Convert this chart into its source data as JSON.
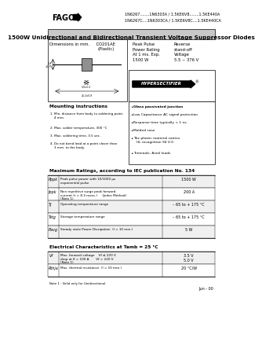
{
  "title_line1": "1500W Unidirectional and Bidirectional Transient Voltage Suppressor Diodes",
  "header_part_numbers_line1": "1N6267........1N6303A / 1.5KE6V8........1.5KE440A",
  "header_part_numbers_line2": "1N6267C....1N6303CA / 1.5KE6V8C....1.5KE440CA",
  "fagor_text": "FAGOR",
  "hypersectifier_text": "HYPERSECTIFIER",
  "dimensions_label": "Dimensions in mm.",
  "package_label": "DO201AE\n(Plastic)",
  "mounting_title": "Mounting instructions",
  "mounting_items": [
    "1. Min. distance from body to soldering point,\n    4 mm.",
    "2. Max. solder temperature, 300 °C",
    "3. Max. soldering time, 3.5 sec.",
    "4. Do not bend lead at a point closer than\n    3 mm. to the body."
  ],
  "features_items": [
    "Glass passivated junction",
    "Low Capacitance AC signal protection",
    "Response time typically < 1 ns.",
    "Molded case",
    "The plastic material carries\n   UL recognition 94 V-0",
    "Terminals: Axial leads"
  ],
  "max_ratings_title": "Maximum Ratings, according to IEC publication No. 134",
  "max_ratings_rows": [
    {
      "sym": "Pppk",
      "desc": "Peak pulse power with 10/1000 μs\nexponential pulse",
      "val": "1500 W"
    },
    {
      "sym": "Ippk",
      "desc": "Non repetitive surge peak forward\ncurrent (t = 8.3 msec.)     (Jedec Method)\n(Note 1)",
      "val": "200 A"
    },
    {
      "sym": "Tj",
      "desc": "Operating temperature range",
      "val": "– 65 to + 175 °C"
    },
    {
      "sym": "Tstg",
      "desc": "Storage temperature range",
      "val": "– 65 to + 175 °C"
    },
    {
      "sym": "Pavg",
      "desc": "Steady state Power Dissipation  (l = 10 mm.)",
      "val": "5 W"
    }
  ],
  "elec_char_title": "Electrical Characteristics at Tamb = 25 °C",
  "elec_char_rows": [
    {
      "sym": "Vf",
      "desc": "Max. forward voltage    Vf ≤ 220 V\ndrop at If = 100 A       Vf > 220 V\n(Note 1)",
      "val": "3.5 V\n5.0 V"
    },
    {
      "sym": "Rthja",
      "desc": "Max. thermal resistance  (l = 10 mm.)",
      "val": "20 °C/W"
    }
  ],
  "note_text": "Note 1 : Valid only for Unidirectional.",
  "date_text": "Jun - 00",
  "bg_color": "#ffffff"
}
